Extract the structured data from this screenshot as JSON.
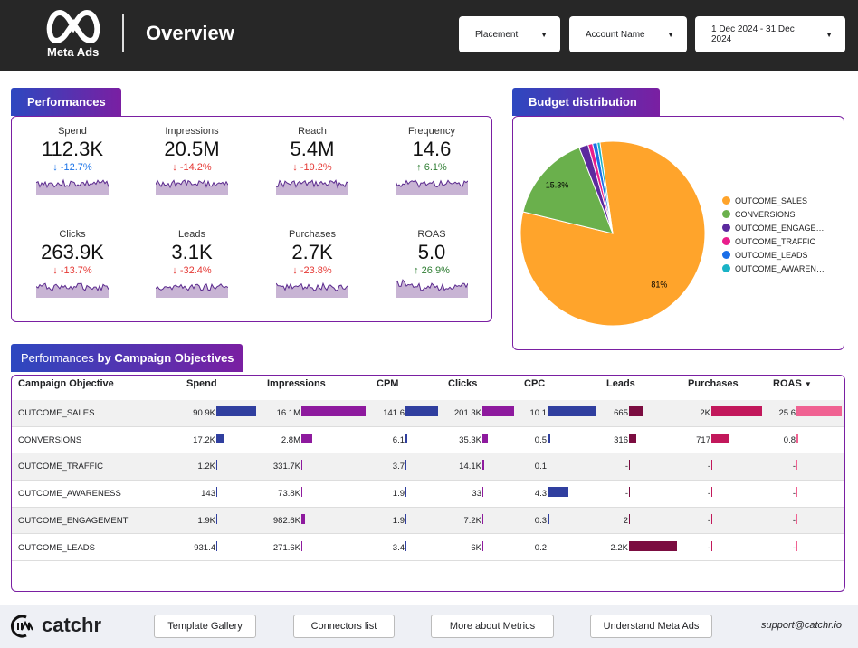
{
  "header": {
    "logo_text": "Meta Ads",
    "title": "Overview",
    "filters": [
      {
        "label": "Placement"
      },
      {
        "label": "Account Name"
      },
      {
        "label": "1 Dec 2024 - 31 Dec 2024"
      }
    ]
  },
  "performances": {
    "title": "Performances",
    "kpis": [
      {
        "label": "Spend",
        "value": "112.3K",
        "delta": "-12.7%",
        "direction": "down",
        "delta_color": "#1a73e8"
      },
      {
        "label": "Impressions",
        "value": "20.5M",
        "delta": "-14.2%",
        "direction": "down",
        "delta_color": "#e53935"
      },
      {
        "label": "Reach",
        "value": "5.4M",
        "delta": "-19.2%",
        "direction": "down",
        "delta_color": "#e53935"
      },
      {
        "label": "Frequency",
        "value": "14.6",
        "delta": "6.1%",
        "direction": "up",
        "delta_color": "#2e7d32"
      },
      {
        "label": "Clicks",
        "value": "263.9K",
        "delta": "-13.7%",
        "direction": "down",
        "delta_color": "#e53935"
      },
      {
        "label": "Leads",
        "value": "3.1K",
        "delta": "-32.4%",
        "direction": "down",
        "delta_color": "#e53935"
      },
      {
        "label": "Purchases",
        "value": "2.7K",
        "delta": "-23.8%",
        "direction": "down",
        "delta_color": "#e53935"
      },
      {
        "label": "ROAS",
        "value": "5.0",
        "delta": "26.9%",
        "direction": "up",
        "delta_color": "#2e7d32"
      }
    ]
  },
  "budget": {
    "title": "Budget distribution",
    "slices": [
      {
        "name": "OUTCOME_SALES",
        "share": 81,
        "label": "81%",
        "color": "#ffa42b"
      },
      {
        "name": "CONVERSIONS",
        "share": 15.3,
        "label": "15.3%",
        "color": "#6ab04c"
      },
      {
        "name": "OUTCOME_ENGAGE…",
        "share": 1.6,
        "label": "",
        "color": "#5b2a9e"
      },
      {
        "name": "OUTCOME_TRAFFIC",
        "share": 0.8,
        "label": "",
        "color": "#e91e8c"
      },
      {
        "name": "OUTCOME_LEADS",
        "share": 0.8,
        "label": "",
        "color": "#1a6ee8"
      },
      {
        "name": "OUTCOME_AWAREN…",
        "share": 0.5,
        "label": "",
        "color": "#1ab3c6"
      }
    ]
  },
  "objectives": {
    "title_light": "Performances ",
    "title_bold": "by Campaign Objectives",
    "sort_indicator": "▼",
    "columns": [
      {
        "label": "Campaign Objective"
      },
      {
        "label": "Spend",
        "color": "#303f9f"
      },
      {
        "label": "Impressions",
        "color": "#8e1a9e"
      },
      {
        "label": "CPM",
        "color": "#303f9f"
      },
      {
        "label": "Clicks",
        "color": "#8e1a9e"
      },
      {
        "label": "CPC",
        "color": "#303f9f"
      },
      {
        "label": "Leads",
        "color": "#7b0c40"
      },
      {
        "label": "Purchases",
        "color": "#c2185b"
      },
      {
        "label": "ROAS",
        "color": "#f06292"
      }
    ],
    "rows": [
      {
        "name": "OUTCOME_SALES",
        "cells": [
          [
            "90.9K",
            90900
          ],
          [
            "16.1M",
            16100000
          ],
          [
            "141.6",
            141.6
          ],
          [
            "201.3K",
            201300
          ],
          [
            "10.1",
            10.1
          ],
          [
            "665",
            665
          ],
          [
            "2K",
            2000
          ],
          [
            "25.6",
            25.6
          ]
        ]
      },
      {
        "name": "CONVERSIONS",
        "cells": [
          [
            "17.2K",
            17200
          ],
          [
            "2.8M",
            2800000
          ],
          [
            "6.1",
            6.1
          ],
          [
            "35.3K",
            35300
          ],
          [
            "0.5",
            0.5
          ],
          [
            "316",
            316
          ],
          [
            "717",
            717
          ],
          [
            "0.8",
            0.8
          ]
        ]
      },
      {
        "name": "OUTCOME_TRAFFIC",
        "cells": [
          [
            "1.2K",
            1200
          ],
          [
            "331.7K",
            331700
          ],
          [
            "3.7",
            3.7
          ],
          [
            "14.1K",
            14100
          ],
          [
            "0.1",
            0.1
          ],
          [
            "-",
            0
          ],
          [
            "-",
            0
          ],
          [
            "-",
            0
          ]
        ]
      },
      {
        "name": "OUTCOME_AWARENESS",
        "cells": [
          [
            "143",
            143
          ],
          [
            "73.8K",
            73800
          ],
          [
            "1.9",
            1.9
          ],
          [
            "33",
            33
          ],
          [
            "4.3",
            4.3
          ],
          [
            "-",
            0
          ],
          [
            "-",
            0
          ],
          [
            "-",
            0
          ]
        ]
      },
      {
        "name": "OUTCOME_ENGAGEMENT",
        "cells": [
          [
            "1.9K",
            1900
          ],
          [
            "982.6K",
            982600
          ],
          [
            "1.9",
            1.9
          ],
          [
            "7.2K",
            7200
          ],
          [
            "0.3",
            0.3
          ],
          [
            "2",
            2
          ],
          [
            "-",
            0
          ],
          [
            "-",
            0
          ]
        ]
      },
      {
        "name": "OUTCOME_LEADS",
        "cells": [
          [
            "931.4",
            931.4
          ],
          [
            "271.6K",
            271600
          ],
          [
            "3.4",
            3.4
          ],
          [
            "6K",
            6000
          ],
          [
            "0.2",
            0.2
          ],
          [
            "2.2K",
            2200
          ],
          [
            "-",
            0
          ],
          [
            "-",
            0
          ]
        ]
      }
    ]
  },
  "footer": {
    "brand": "catchr",
    "buttons": [
      "Template Gallery",
      "Connectors list",
      "More about Metrics",
      "Understand Meta Ads"
    ],
    "email": "support@catchr.io"
  }
}
